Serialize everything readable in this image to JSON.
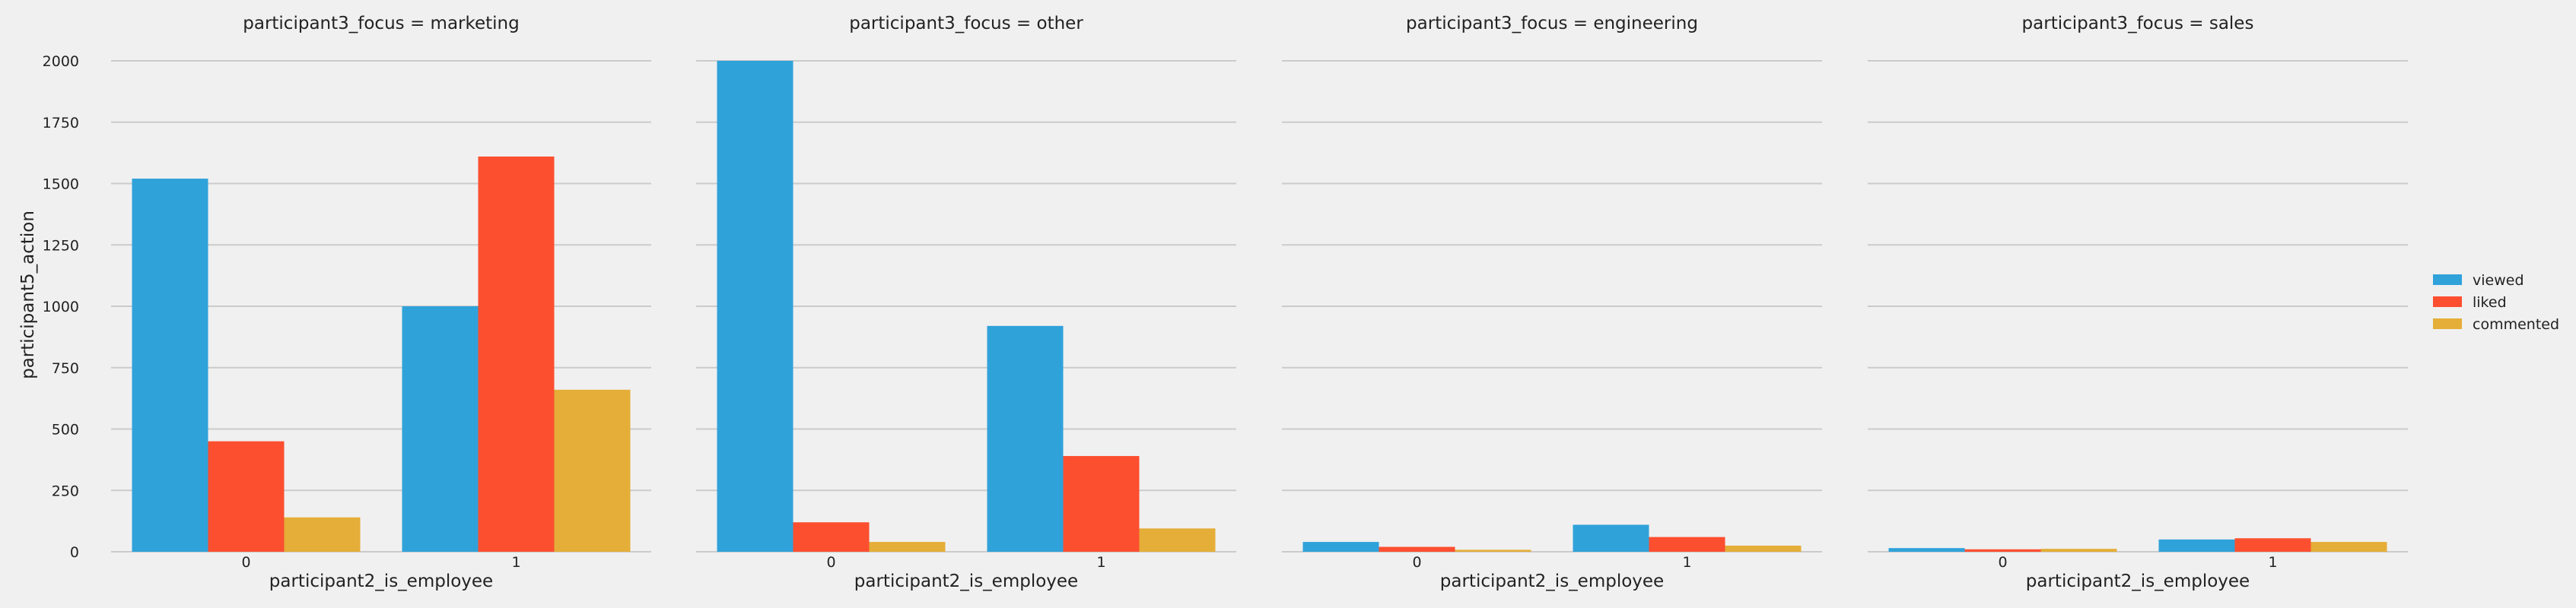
{
  "chart_data": {
    "type": "bar",
    "facet_variable": "participant3_focus",
    "facets": [
      {
        "title": "participant3_focus = marketing",
        "categories": [
          "0",
          "1"
        ],
        "series": [
          {
            "name": "viewed",
            "values": [
              1520,
              1000
            ]
          },
          {
            "name": "liked",
            "values": [
              450,
              1610
            ]
          },
          {
            "name": "commented",
            "values": [
              140,
              660
            ]
          }
        ]
      },
      {
        "title": "participant3_focus = other",
        "categories": [
          "0",
          "1"
        ],
        "series": [
          {
            "name": "viewed",
            "values": [
              2000,
              920
            ]
          },
          {
            "name": "liked",
            "values": [
              120,
              390
            ]
          },
          {
            "name": "commented",
            "values": [
              40,
              95
            ]
          }
        ]
      },
      {
        "title": "participant3_focus = engineering",
        "categories": [
          "0",
          "1"
        ],
        "series": [
          {
            "name": "viewed",
            "values": [
              40,
              110
            ]
          },
          {
            "name": "liked",
            "values": [
              20,
              60
            ]
          },
          {
            "name": "commented",
            "values": [
              8,
              25
            ]
          }
        ]
      },
      {
        "title": "participant3_focus = sales",
        "categories": [
          "0",
          "1"
        ],
        "series": [
          {
            "name": "viewed",
            "values": [
              15,
              50
            ]
          },
          {
            "name": "liked",
            "values": [
              10,
              55
            ]
          },
          {
            "name": "commented",
            "values": [
              12,
              40
            ]
          }
        ]
      }
    ],
    "xlabel": "participant2_is_employee",
    "ylabel": "participant5_action",
    "ylim": [
      0,
      2000
    ],
    "yticks": [
      "0",
      "250",
      "500",
      "750",
      "1000",
      "1250",
      "1500",
      "1750",
      "2000"
    ],
    "grid": true,
    "legend_position": "right",
    "legend": [
      "viewed",
      "liked",
      "commented"
    ],
    "colors": {
      "viewed": "#30a2da",
      "liked": "#fc4f30",
      "commented": "#e5ae38"
    }
  }
}
